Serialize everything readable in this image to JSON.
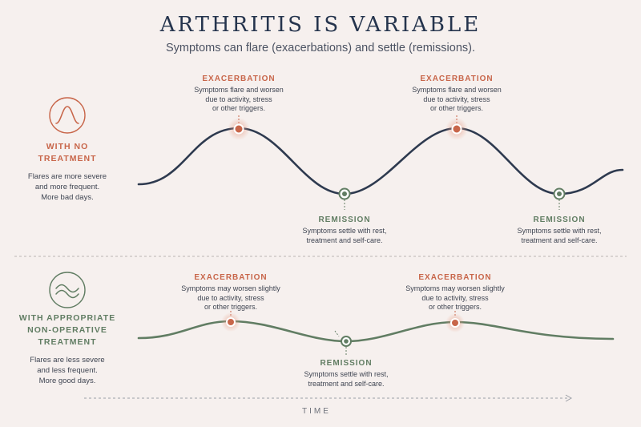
{
  "title": "ARTHRITIS IS VARIABLE",
  "subtitle": "Symptoms can flare (exacerbations) and settle (remissions).",
  "colors": {
    "background": "#f6f0ee",
    "untreated_curve": "#2e3a4f",
    "treated_curve": "#617d63",
    "exacerbation": "#c8664a",
    "remission": "#617d63"
  },
  "untreated": {
    "icon": "bell-curve-icon",
    "heading": "WITH NO\nTREATMENT",
    "description": "Flares are more severe\nand more frequent.\nMore bad days.",
    "peak_label": "EXACERBATION",
    "peak_text": "Symptoms flare and worsen\ndue to activity, stress\nor other triggers.",
    "trough_label": "REMISSION",
    "trough_text": "Symptoms settle with rest,\ntreatment and self-care."
  },
  "treated": {
    "icon": "gentle-wave-icon",
    "heading": "WITH APPROPRIATE\nNON-OPERATIVE\nTREATMENT",
    "description": "Flares are less severe\nand less frequent.\nMore good days.",
    "peak_label": "EXACERBATION",
    "peak_text": "Symptoms may worsen slightly\ndue to activity, stress\nor other triggers.",
    "trough_label": "REMISSION",
    "trough_text": "Symptoms settle with rest,\ntreatment and self-care."
  },
  "axis_label": "TIME"
}
